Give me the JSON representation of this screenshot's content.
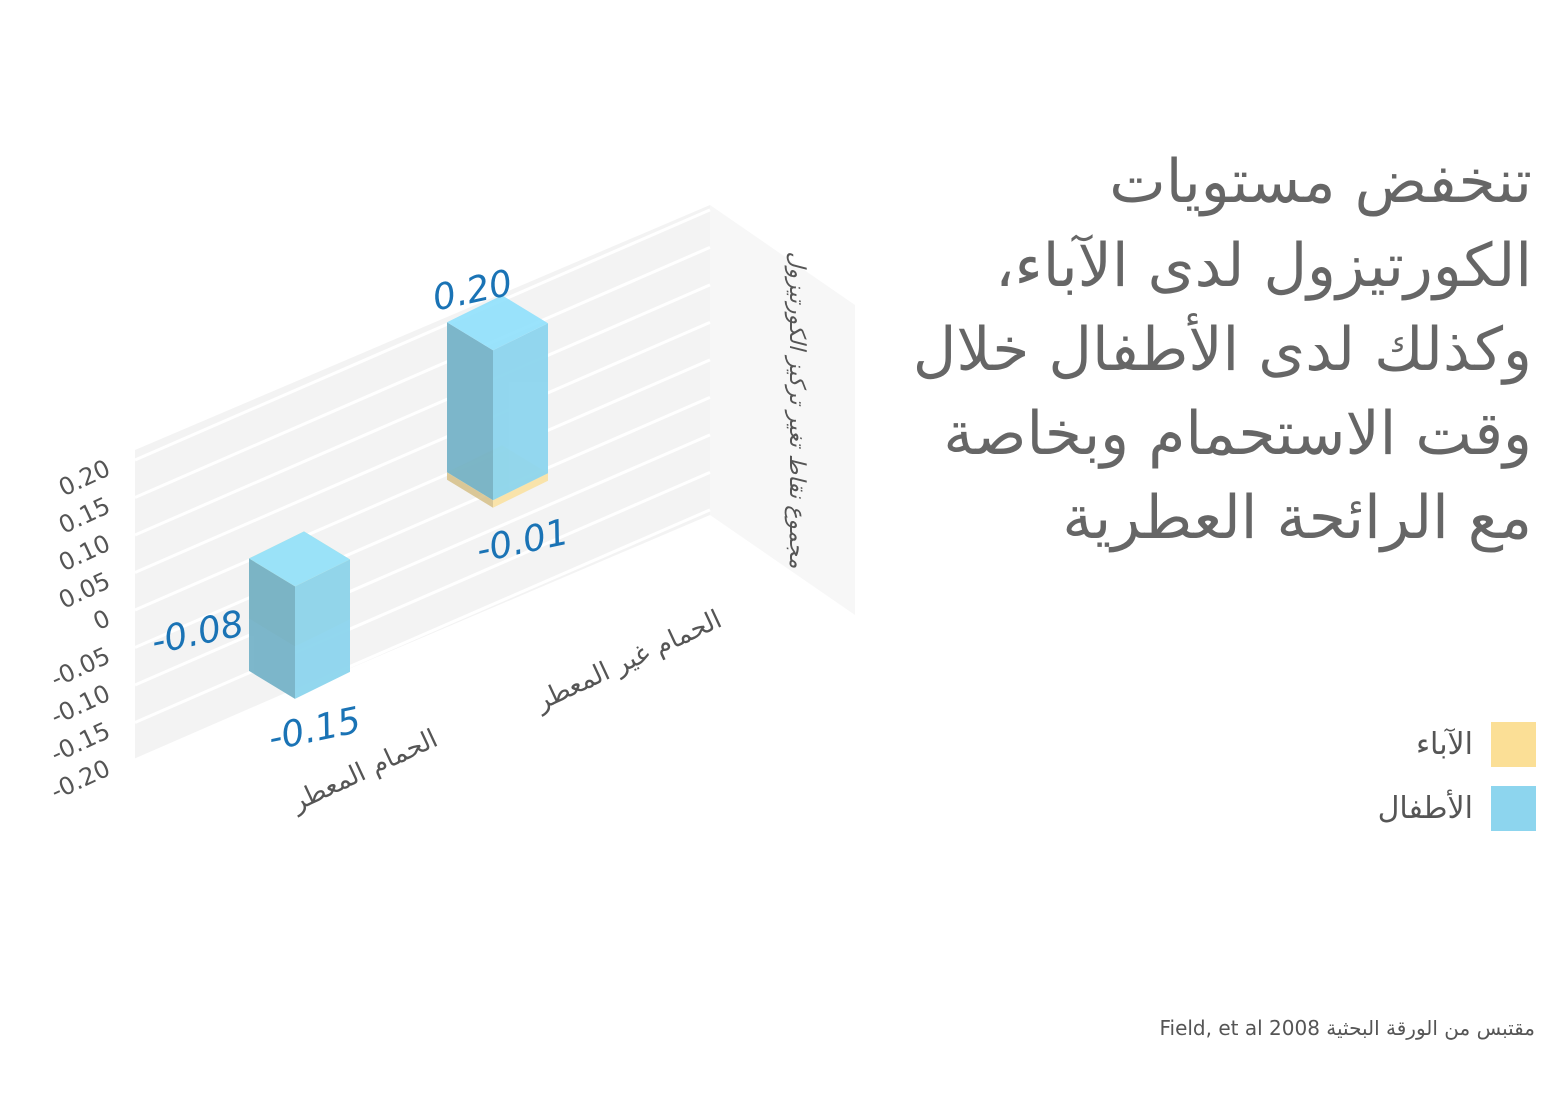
{
  "chart_data": {
    "type": "bar3d",
    "title": "تنخفض مستويات الكورتيزول لدى الآباء، وكذلك لدى الأطفال خلال وقت الاستحمام وبخاصة مع الرائحة العطرية",
    "y_label": "مجموع نقاط تغير تركيز الكورتيزول",
    "categories": [
      "الحمام المعطر",
      "الحمام غير المعطر"
    ],
    "series": [
      {
        "name": "الآباء",
        "color": "#fbdf96",
        "values": [
          -0.08,
          -0.01
        ],
        "value_labels": [
          "-0.08",
          "-0.01"
        ]
      },
      {
        "name": "الأطفال",
        "color": "#8dd5ee",
        "values": [
          -0.15,
          0.2
        ],
        "value_labels": [
          "-0.15",
          "0.20"
        ]
      }
    ],
    "ylim": [
      -0.2,
      0.2
    ],
    "yticks": [
      {
        "value": 0.2,
        "label": "0.20"
      },
      0.15,
      {
        "value": 0.1,
        "label": "0.10"
      },
      0.05,
      0,
      -0.05,
      {
        "value": -0.1,
        "label": "-0.10"
      },
      -0.15,
      {
        "value": -0.2,
        "label": "-0.20"
      }
    ],
    "grid": true,
    "source": "مقتبس من الورقة البحثية Field, et al 2008"
  }
}
